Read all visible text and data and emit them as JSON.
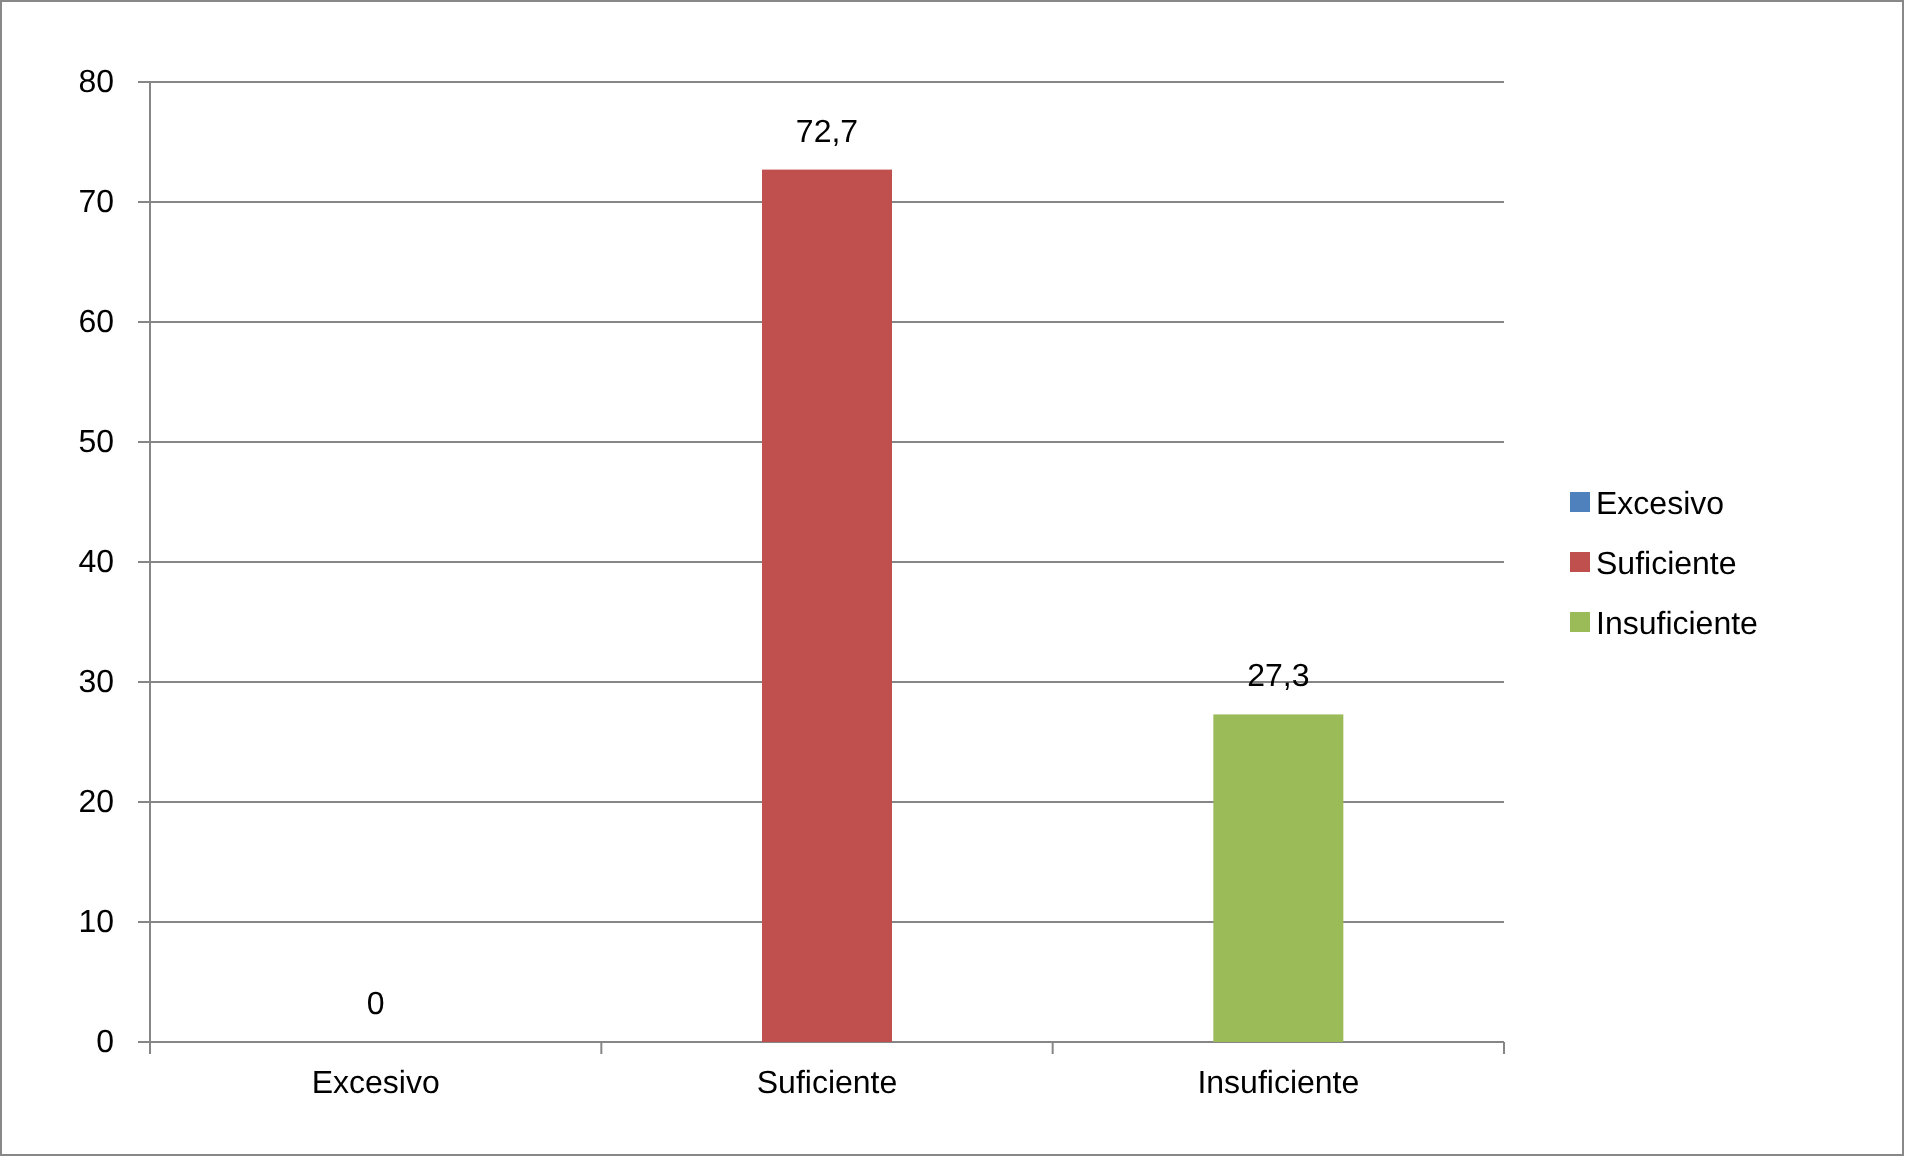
{
  "chart_data": {
    "type": "bar",
    "categories": [
      "Excesivo",
      "Suficiente",
      "Insuficiente"
    ],
    "series": [
      {
        "name": "Excesivo",
        "color": "#4f81bd",
        "values": [
          0,
          null,
          null
        ],
        "value_labels": [
          "0",
          null,
          null
        ]
      },
      {
        "name": "Suficiente",
        "color": "#c0504d",
        "values": [
          null,
          72.7,
          null
        ],
        "value_labels": [
          null,
          "72,7",
          null
        ]
      },
      {
        "name": "Insuficiente",
        "color": "#9bbb59",
        "values": [
          null,
          null,
          27.3
        ],
        "value_labels": [
          null,
          null,
          "27,3"
        ]
      }
    ],
    "ylim": [
      0,
      80
    ],
    "yticks": [
      0,
      10,
      20,
      30,
      40,
      50,
      60,
      70,
      80
    ],
    "grid": "y",
    "legend": "right"
  }
}
